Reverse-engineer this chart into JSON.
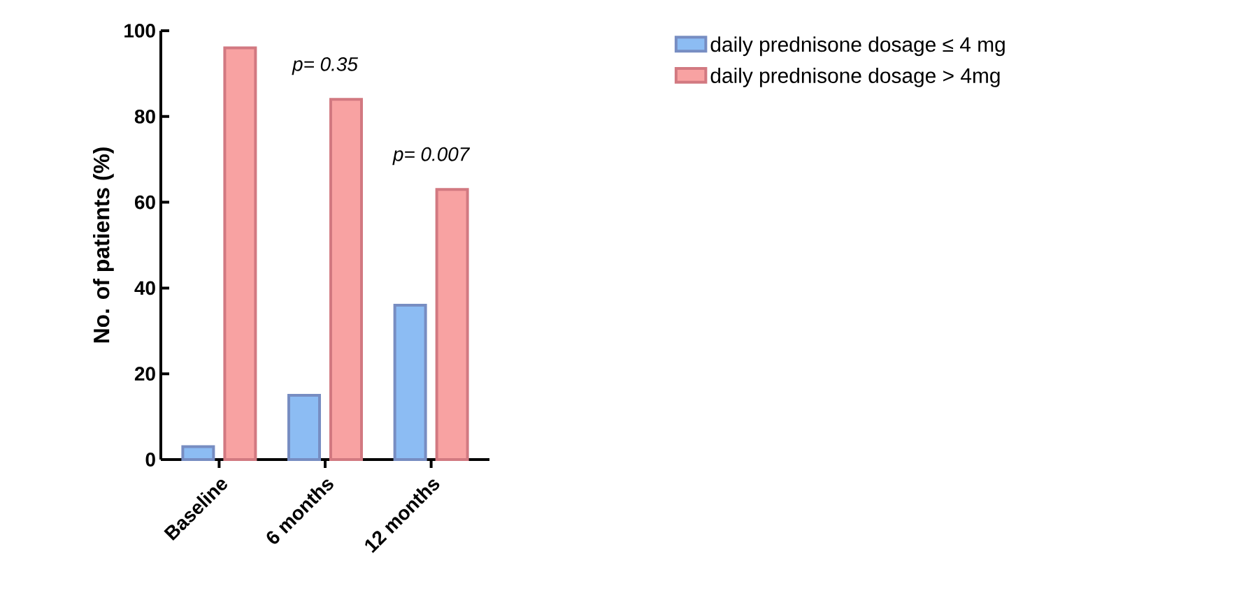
{
  "chart_data": {
    "type": "bar",
    "ylabel": "No. of patients (%)",
    "categories": [
      "Baseline",
      "6 months",
      "12 months"
    ],
    "series": [
      {
        "name": "daily prednisone dosage ≤ 4 mg",
        "color": "#8cbcf3",
        "values": [
          3,
          15,
          36
        ]
      },
      {
        "name": "daily prednisone dosage > 4mg",
        "color": "#f8a2a2",
        "values": [
          96,
          84,
          63
        ]
      }
    ],
    "ylim": [
      0,
      100
    ],
    "yticks": [
      0,
      20,
      40,
      60,
      80,
      100
    ],
    "grid": false,
    "legend": "top right",
    "annotations": [
      "p= 0.35",
      "p= 0.007"
    ]
  }
}
